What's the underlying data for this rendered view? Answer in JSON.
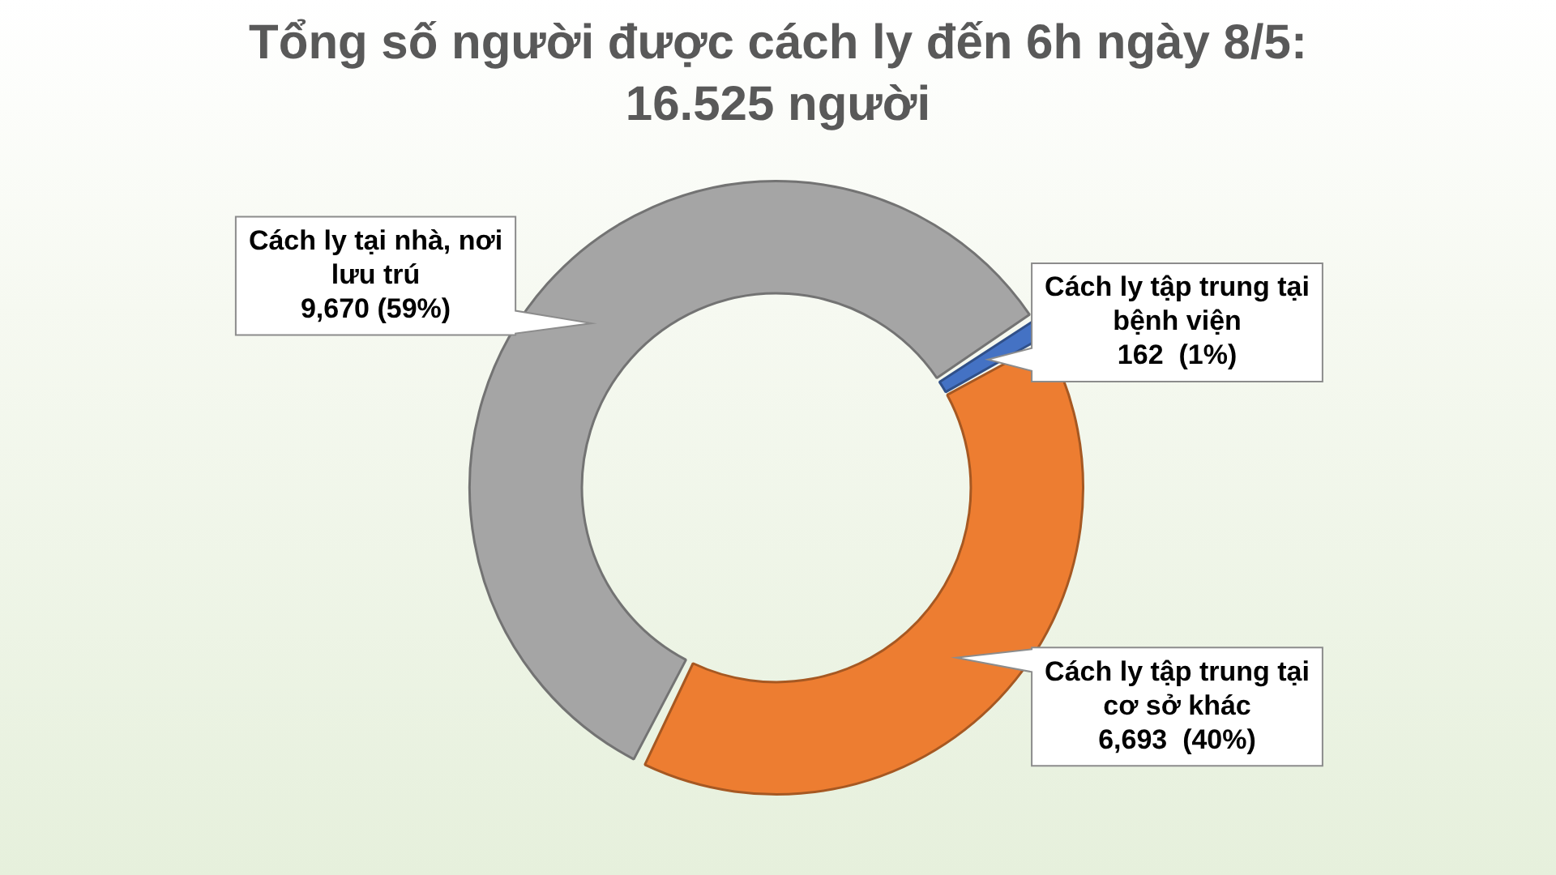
{
  "chart_data": {
    "type": "donut",
    "title": "Tổng số người được cách ly đến 6h ngày 8/5:\n16.525 người",
    "categories": [
      "Cách ly tập trung tại bệnh viện",
      "Cách ly tập trung tại cơ sở khác",
      "Cách ly tại nhà, nơi lưu trú"
    ],
    "values": [
      162,
      6693,
      9670
    ],
    "colors": [
      "#4472c4",
      "#ed7d31",
      "#a5a5a5"
    ],
    "value_labels": [
      "162  (1%)",
      "6,693  (40%)",
      "9,670 (59%)"
    ]
  }
}
